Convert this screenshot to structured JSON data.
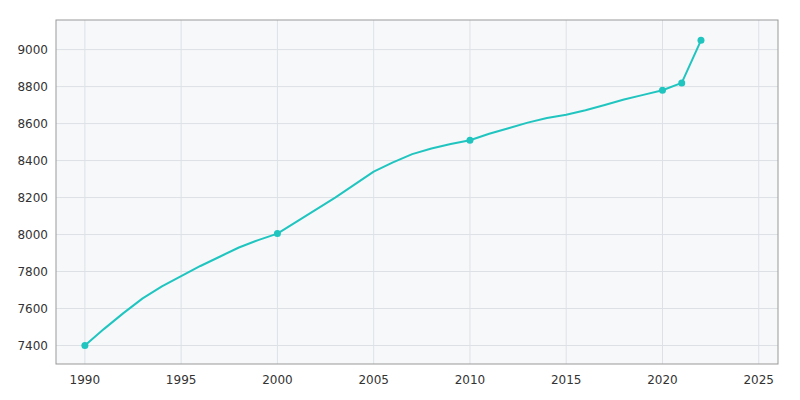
{
  "chart_data": {
    "type": "line",
    "x": [
      1990,
      1991,
      1992,
      1993,
      1994,
      1995,
      1996,
      1997,
      1998,
      1999,
      2000,
      2001,
      2002,
      2003,
      2004,
      2005,
      2006,
      2007,
      2008,
      2009,
      2010,
      2011,
      2012,
      2013,
      2014,
      2015,
      2016,
      2017,
      2018,
      2019,
      2020,
      2021,
      2022
    ],
    "series": [
      {
        "type": "line",
        "color": "#20C5C0",
        "values": [
          7400,
          7490,
          7575,
          7655,
          7720,
          7775,
          7830,
          7880,
          7930,
          7970,
          8005,
          8070,
          8135,
          8200,
          8270,
          8340,
          8390,
          8435,
          8465,
          8490,
          8510,
          8545,
          8575,
          8605,
          8630,
          8648,
          8672,
          8700,
          8730,
          8755,
          8780,
          8820,
          9050
        ]
      },
      {
        "type": "scatter",
        "color": "#20C5C0",
        "x": [
          1990,
          2000,
          2010,
          2020,
          2021,
          2022
        ],
        "values": [
          7400,
          8005,
          8510,
          8780,
          8820,
          9050
        ]
      }
    ],
    "xlim": [
      1988.5,
      2026
    ],
    "ylim": [
      7300,
      9160
    ],
    "xticks": [
      1990,
      1995,
      2000,
      2005,
      2010,
      2015,
      2020,
      2025
    ],
    "yticks": [
      7400,
      7600,
      7800,
      8000,
      8200,
      8400,
      8600,
      8800,
      9000
    ],
    "grid": true
  }
}
